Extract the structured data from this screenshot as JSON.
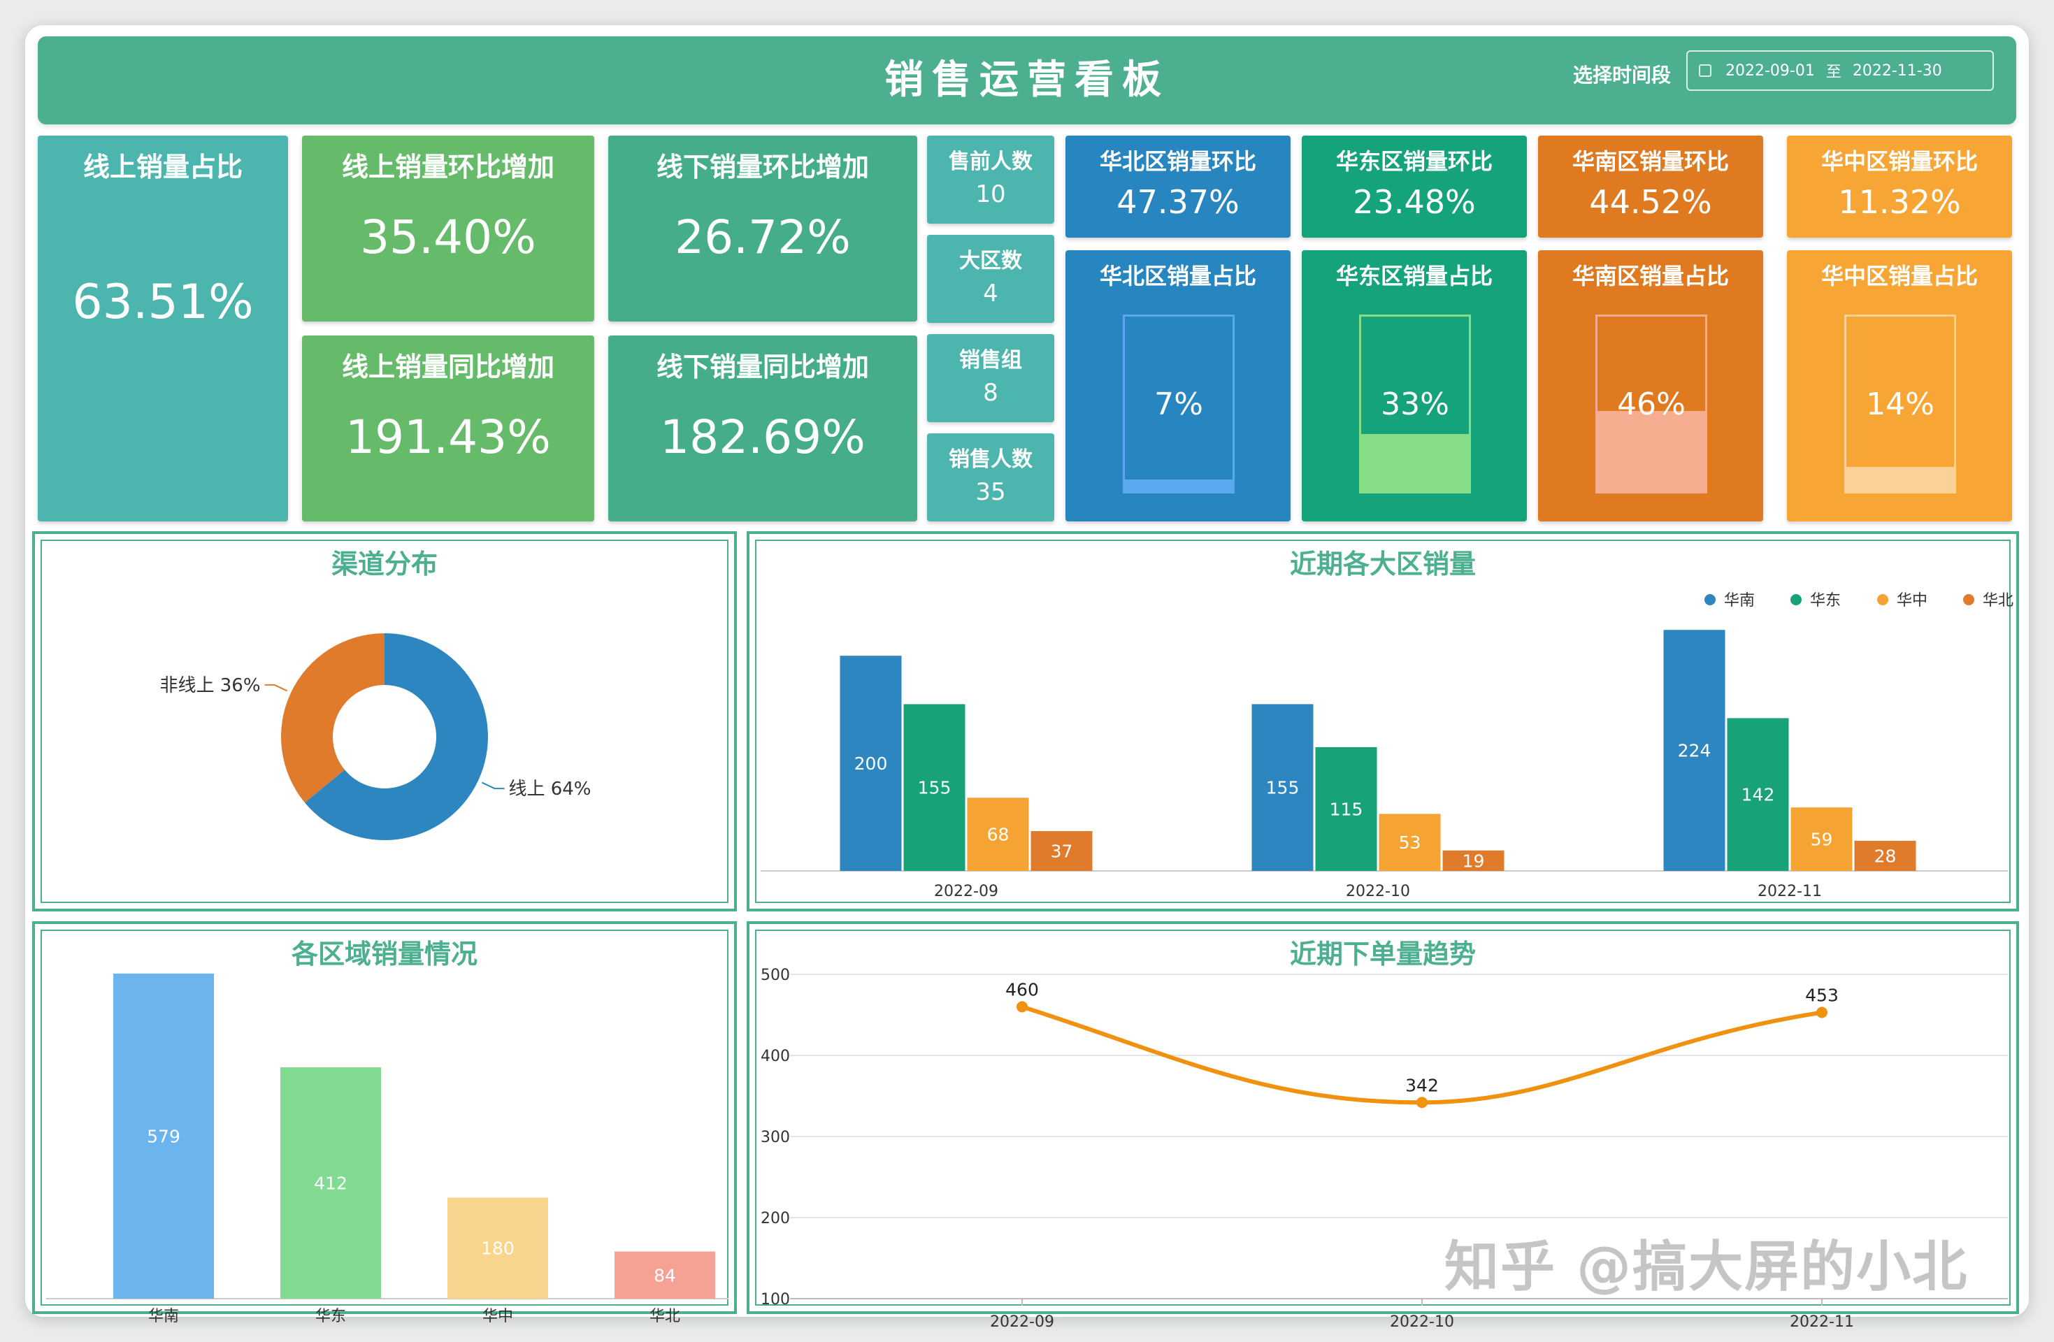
{
  "header": {
    "title": "销售运营看板",
    "period_label": "选择时间段",
    "start_date": "2022-09-01",
    "separator": "至",
    "end_date": "2022-11-30"
  },
  "kpis": {
    "online_share": {
      "label": "线上销量占比",
      "value": "63.51%"
    },
    "online_mom": {
      "label": "线上销量环比增加",
      "value": "35.40%"
    },
    "offline_mom": {
      "label": "线下销量环比增加",
      "value": "26.72%"
    },
    "online_yoy": {
      "label": "线上销量同比增加",
      "value": "191.43%"
    },
    "offline_yoy": {
      "label": "线下销量同比增加",
      "value": "182.69%"
    },
    "presale": {
      "label": "售前人数",
      "value": "10"
    },
    "regions": {
      "label": "大区数",
      "value": "4"
    },
    "groups": {
      "label": "销售组",
      "value": "8"
    },
    "sales_staff": {
      "label": "销售人数",
      "value": "35"
    }
  },
  "region_cards": [
    {
      "mom_label": "华北区销量环比",
      "mom_value": "47.37%",
      "share_label": "华北区销量占比",
      "share_text": "7%",
      "share": 7,
      "bg": "#2785c0",
      "liquid": "#5aa8ee",
      "border": "#5aa8ee"
    },
    {
      "mom_label": "华东区销量环比",
      "mom_value": "23.48%",
      "share_label": "华东区销量占比",
      "share_text": "33%",
      "share": 33,
      "bg": "#14a37a",
      "liquid": "#86df88",
      "border": "#86df88"
    },
    {
      "mom_label": "华南区销量环比",
      "mom_value": "44.52%",
      "share_label": "华南区销量占比",
      "share_text": "46%",
      "share": 46,
      "bg": "#e07a20",
      "liquid": "#f7ae90",
      "border": "#f7ae90"
    },
    {
      "mom_label": "华中区销量环比",
      "mom_value": "11.32%",
      "share_label": "华中区销量占比",
      "share_text": "14%",
      "share": 14,
      "bg": "#f7a534",
      "liquid": "#fbd196",
      "border": "#fbd196"
    }
  ],
  "panels": {
    "channel": "渠道分布",
    "region_recent": "近期各大区销量",
    "region_total": "各区域销量情况",
    "order_trend": "近期下单量趋势"
  },
  "watermark": "知乎 @搞大屏的小北",
  "chart_data": [
    {
      "type": "pie",
      "title": "渠道分布",
      "slices": [
        {
          "name": "线上",
          "value": 64,
          "label": "线上 64%",
          "color": "#2e86c1"
        },
        {
          "name": "非线上",
          "value": 36,
          "label": "非线上 36%",
          "color": "#e07b2c"
        }
      ]
    },
    {
      "type": "bar",
      "title": "近期各大区销量",
      "categories": [
        "2022-09",
        "2022-10",
        "2022-11"
      ],
      "series": [
        {
          "name": "华南",
          "values": [
            200,
            155,
            224
          ],
          "color": "#2e86c1"
        },
        {
          "name": "华东",
          "values": [
            155,
            115,
            142
          ],
          "color": "#17a27a"
        },
        {
          "name": "华中",
          "values": [
            68,
            53,
            59
          ],
          "color": "#f5a333"
        },
        {
          "name": "华北",
          "values": [
            37,
            19,
            28
          ],
          "color": "#e07b2c"
        }
      ],
      "ylim": [
        0,
        230
      ],
      "legend": "top-right",
      "grid": false
    },
    {
      "type": "bar",
      "title": "各区域销量情况",
      "categories": [
        "华南",
        "华东",
        "华中",
        "华北"
      ],
      "values": [
        579,
        412,
        180,
        84
      ],
      "colors": [
        "#6cb4ee",
        "#81dc91",
        "#f9d48c",
        "#f5a193"
      ],
      "ylim": [
        0,
        590
      ],
      "grid": false
    },
    {
      "type": "line",
      "title": "近期下单量趋势",
      "x": [
        "2022-09",
        "2022-10",
        "2022-11"
      ],
      "y": [
        460,
        342,
        453
      ],
      "yticks": [
        100,
        200,
        300,
        400,
        500
      ],
      "ylim": [
        100,
        500
      ],
      "color": "#f0910f",
      "grid": true,
      "smooth": true
    }
  ]
}
